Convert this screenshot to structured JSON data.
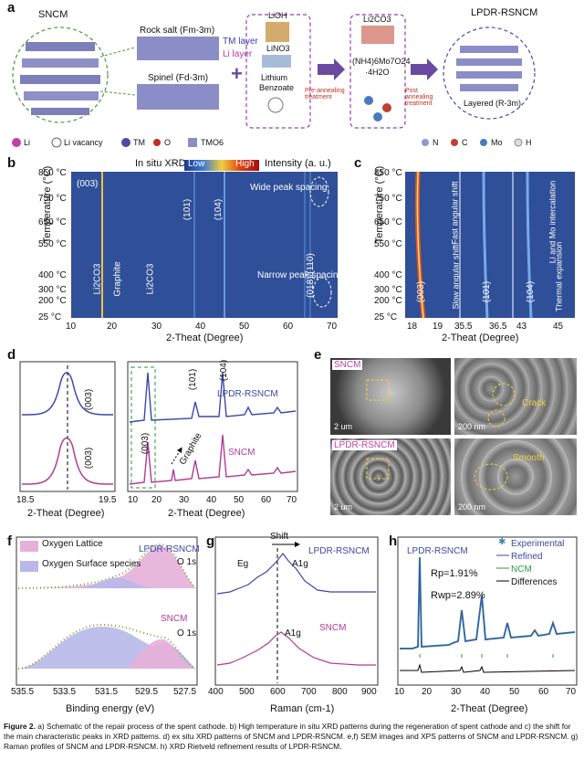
{
  "panel_a": {
    "label": "a",
    "sncm": "SNCM",
    "lpdr": "LPDR-RSNCM",
    "rock_salt": "Rock salt (Fm-3m)",
    "tm_layer": "TM layer",
    "li_layer": "Li layer",
    "spinel": "Spinel (Fd-3m)",
    "reagents": [
      "LiOH",
      "LiNO3",
      "Lithium",
      "Benzoate"
    ],
    "products": [
      "Li2CO3",
      "(NH4)6Mo7O24",
      "·4H2O"
    ],
    "pre": "Pre-annealing treatment",
    "post": "Post annealing treatment",
    "layered": "Layered (R-3m)",
    "legend_left": [
      "Li",
      "Li vacancy",
      "TM",
      "O",
      "TMO6"
    ],
    "legend_right": [
      "N",
      "C",
      "Mo",
      "H"
    ]
  },
  "panel_b": {
    "label": "b",
    "title": "In situ XRD",
    "scale_low": "Low",
    "scale_high": "High",
    "scale_label": "Intensity (a. u.)",
    "ylabel": "Temperature (°C)",
    "xlabel": "2-Theat (Degree)",
    "temps": [
      "850 °C",
      "750 °C",
      "650 °C",
      "550 °C",
      "400 °C",
      "300 °C",
      "200 °C",
      "25 °C"
    ],
    "xticks": [
      "10",
      "20",
      "30",
      "40",
      "50",
      "60",
      "70"
    ],
    "peaks": [
      "(003)",
      "(101)",
      "(104)",
      "Li2CO3",
      "Graphite",
      "Li2CO3",
      "(018)/(110)"
    ],
    "notes": [
      "Wide peak spacing",
      "Narrow peak spacing"
    ]
  },
  "panel_c": {
    "label": "c",
    "ylabel": "Temperature (°C)",
    "xlabel": "2-Theat (Degree)",
    "temps": [
      "850 °C",
      "750 °C",
      "650 °C",
      "550 °C",
      "400 °C",
      "300 °C",
      "200 °C",
      "25 °C"
    ],
    "xticks": [
      "18",
      "19",
      "35.5",
      "36.5",
      "43",
      "45"
    ],
    "peaks": [
      "(003)",
      "(101)",
      "(104)"
    ],
    "notes": [
      "Fast angular shift",
      "Slow angular shift",
      "Li and Mo intercalation",
      "Thermal expansion"
    ]
  },
  "panel_d": {
    "label": "d",
    "xlabel": "2-Theat (Degree)",
    "left_ticks": [
      "18.5",
      "19.5"
    ],
    "right_ticks": [
      "10",
      "20",
      "30",
      "40",
      "50",
      "60",
      "70"
    ],
    "labels": [
      "LPDR-RSNCM",
      "SNCM",
      "(003)",
      "(101)",
      "(104)",
      "Graphite"
    ]
  },
  "panel_e": {
    "label": "e",
    "tags": [
      "SNCM",
      "LPDR-RSNCM"
    ],
    "notes": [
      "Crack",
      "Smooth"
    ],
    "scales": [
      "2 um",
      "200 nm",
      "2 um",
      "200 nm"
    ]
  },
  "panel_f": {
    "label": "f",
    "legend": [
      "Oxygen Lattice",
      "Oxygen Surface species"
    ],
    "samples": [
      "LPDR-RSNCM",
      "SNCM"
    ],
    "orbital": "O 1s",
    "xticks": [
      "535.5",
      "533.5",
      "531.5",
      "529.5",
      "527.5"
    ],
    "xlabel": "Binding energy (eV)"
  },
  "panel_g": {
    "label": "g",
    "shift": "Shift",
    "samples": [
      "LPDR-RSNCM",
      "SNCM"
    ],
    "modes": [
      "Eg",
      "A1g",
      "A1g"
    ],
    "xticks": [
      "400",
      "500",
      "600",
      "700",
      "800",
      "900"
    ],
    "xlabel": "Raman (cm-1)"
  },
  "panel_h": {
    "label": "h",
    "sample": "LPDR-RSNCM",
    "legend": [
      "Experimental",
      "Refined",
      "NCM",
      "Differences"
    ],
    "rp": "Rp=1.91%",
    "rwp": "Rwp=2.89%",
    "xticks": [
      "10",
      "20",
      "30",
      "40",
      "50",
      "60",
      "70"
    ],
    "xlabel": "2-Theat (Degree)"
  },
  "caption": {
    "fig": "Figure 2.",
    "text": "a) Schematic of the repair process of the spent cathode. b) High temperature in situ XRD patterns during the regeneration of spent cathode and c) the shift for the main characteristic peaks in XRD patterns. d) ex situ XRD patterns of SNCM and LPDR-RSNCM. e,f) SEM images and XPS patterns of SNCM and LPDR-RSNCM. g) Raman profiles of SNCM and LPDR-RSNCM. h) XRD Rietveld refinement results of LPDR-RSNCM."
  }
}
